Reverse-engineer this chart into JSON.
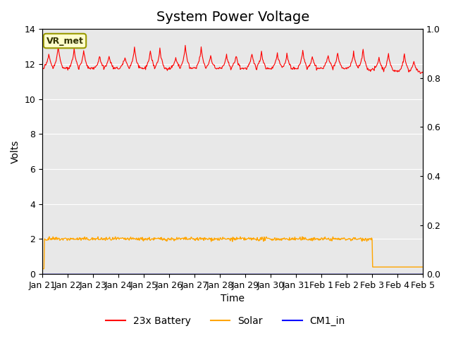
{
  "title": "System Power Voltage",
  "xlabel": "Time",
  "ylabel": "Volts",
  "ylim_left": [
    0,
    14
  ],
  "ylim_right": [
    0.0,
    1.0
  ],
  "yticks_left": [
    0,
    2,
    4,
    6,
    8,
    10,
    12,
    14
  ],
  "yticks_right": [
    0.0,
    0.2,
    0.4,
    0.6,
    0.8,
    1.0
  ],
  "xtick_labels": [
    "Jan 21",
    "Jan 22",
    "Jan 23",
    "Jan 24",
    "Jan 25",
    "Jan 26",
    "Jan 27",
    "Jan 28",
    "Jan 29",
    "Jan 30",
    "Jan 31",
    "Feb 1",
    "Feb 2",
    "Feb 3",
    "Feb 4",
    "Feb 5"
  ],
  "bg_color": "#e8e8e8",
  "fig_bg": "#ffffff",
  "annotation_text": "VR_met",
  "series_battery_color": "red",
  "series_solar_color": "orange",
  "series_cm1_color": "blue",
  "title_fontsize": 14,
  "tick_fontsize": 9,
  "label_fontsize": 10,
  "legend_fontsize": 10
}
